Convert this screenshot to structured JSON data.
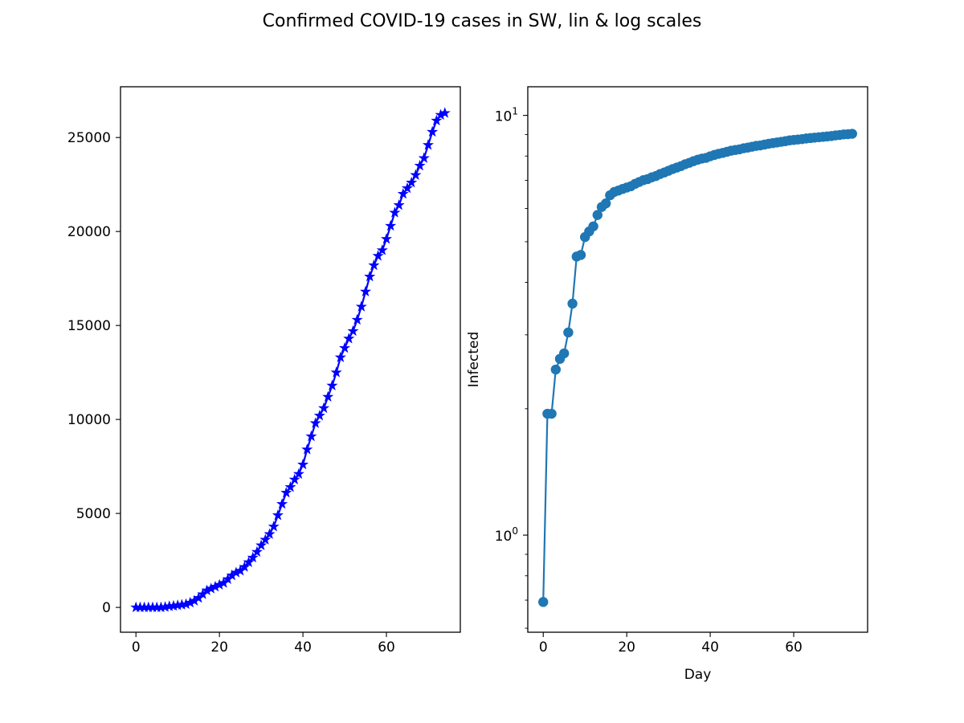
{
  "figure": {
    "title": "Confirmed COVID-19 cases in SW, lin & log scales"
  },
  "chart_data": [
    {
      "type": "line",
      "scale": "linear",
      "xlabel": "",
      "ylabel": "",
      "xlim": [
        -3.7,
        77.7
      ],
      "ylim": [
        -1320,
        27700
      ],
      "xticks": [
        0,
        20,
        40,
        60
      ],
      "yticks": [
        0,
        5000,
        10000,
        15000,
        20000,
        25000
      ],
      "xtick_labels": [
        "0",
        "20",
        "40",
        "60"
      ],
      "ytick_labels": [
        "0",
        "5000",
        "10000",
        "15000",
        "20000",
        "25000"
      ],
      "grid": false,
      "legend": "none",
      "series": [
        {
          "color": "#0000ff",
          "marker": "star",
          "x": [
            0,
            1,
            2,
            3,
            4,
            5,
            6,
            7,
            8,
            9,
            10,
            11,
            12,
            13,
            14,
            15,
            16,
            17,
            18,
            19,
            20,
            21,
            22,
            23,
            24,
            25,
            26,
            27,
            28,
            29,
            30,
            31,
            32,
            33,
            34,
            35,
            36,
            37,
            38,
            39,
            40,
            41,
            42,
            43,
            44,
            45,
            46,
            47,
            48,
            49,
            50,
            51,
            52,
            53,
            54,
            55,
            56,
            57,
            58,
            59,
            60,
            61,
            62,
            63,
            64,
            65,
            66,
            67,
            68,
            69,
            70,
            71,
            72,
            73,
            74
          ],
          "values": [
            0,
            0,
            0,
            0,
            0,
            0,
            0,
            20,
            60,
            80,
            110,
            140,
            170,
            250,
            350,
            500,
            700,
            900,
            1000,
            1100,
            1200,
            1300,
            1500,
            1700,
            1850,
            1950,
            2150,
            2400,
            2650,
            2950,
            3300,
            3600,
            3900,
            4300,
            4900,
            5500,
            6100,
            6400,
            6800,
            7100,
            7600,
            8400,
            9100,
            9800,
            10200,
            10600,
            11200,
            11800,
            12500,
            13300,
            13800,
            14300,
            14700,
            15300,
            16000,
            16800,
            17600,
            18200,
            18700,
            19000,
            19600,
            20300,
            21000,
            21400,
            22000,
            22300,
            22600,
            23000,
            23500,
            23900,
            24600,
            25300,
            25900,
            26200,
            26300
          ]
        }
      ]
    },
    {
      "type": "line",
      "scale": "log",
      "xlabel": "Day",
      "ylabel": "Infected",
      "xlim": [
        -3.7,
        77.7
      ],
      "ylim": [
        0.587,
        11.7
      ],
      "xticks": [
        0,
        20,
        40,
        60
      ],
      "xtick_labels": [
        "0",
        "20",
        "40",
        "60"
      ],
      "ytick_labels": [
        {
          "base": "10",
          "exp": "0",
          "value": 1
        },
        {
          "base": "10",
          "exp": "1",
          "value": 10
        }
      ],
      "grid": false,
      "legend": "none",
      "series": [
        {
          "color": "#1f77b4",
          "marker": "circle",
          "x": [
            0,
            1,
            2,
            3,
            4,
            5,
            6,
            7,
            8,
            9,
            10,
            11,
            12,
            13,
            14,
            15,
            16,
            17,
            18,
            19,
            20,
            21,
            22,
            23,
            24,
            25,
            26,
            27,
            28,
            29,
            30,
            31,
            32,
            33,
            34,
            35,
            36,
            37,
            38,
            39,
            40,
            41,
            42,
            43,
            44,
            45,
            46,
            47,
            48,
            49,
            50,
            51,
            52,
            53,
            54,
            55,
            56,
            57,
            58,
            59,
            60,
            61,
            62,
            63,
            64,
            65,
            66,
            67,
            68,
            69,
            70,
            71,
            72,
            73,
            74
          ],
          "values": [
            0.693,
            1.946,
            1.946,
            2.48,
            2.63,
            2.71,
            3.04,
            3.56,
            4.61,
            4.65,
            5.13,
            5.29,
            5.44,
            5.79,
            6.05,
            6.17,
            6.45,
            6.57,
            6.62,
            6.68,
            6.73,
            6.78,
            6.87,
            6.94,
            7.01,
            7.05,
            7.12,
            7.17,
            7.25,
            7.31,
            7.38,
            7.45,
            7.51,
            7.57,
            7.65,
            7.71,
            7.78,
            7.84,
            7.89,
            7.92,
            7.99,
            8.05,
            8.1,
            8.14,
            8.19,
            8.24,
            8.27,
            8.3,
            8.35,
            8.38,
            8.42,
            8.46,
            8.48,
            8.52,
            8.56,
            8.59,
            8.62,
            8.65,
            8.68,
            8.72,
            8.74,
            8.76,
            8.78,
            8.81,
            8.83,
            8.85,
            8.87,
            8.89,
            8.91,
            8.93,
            8.96,
            8.98,
            9.01,
            9.02,
            9.04
          ]
        }
      ]
    }
  ]
}
